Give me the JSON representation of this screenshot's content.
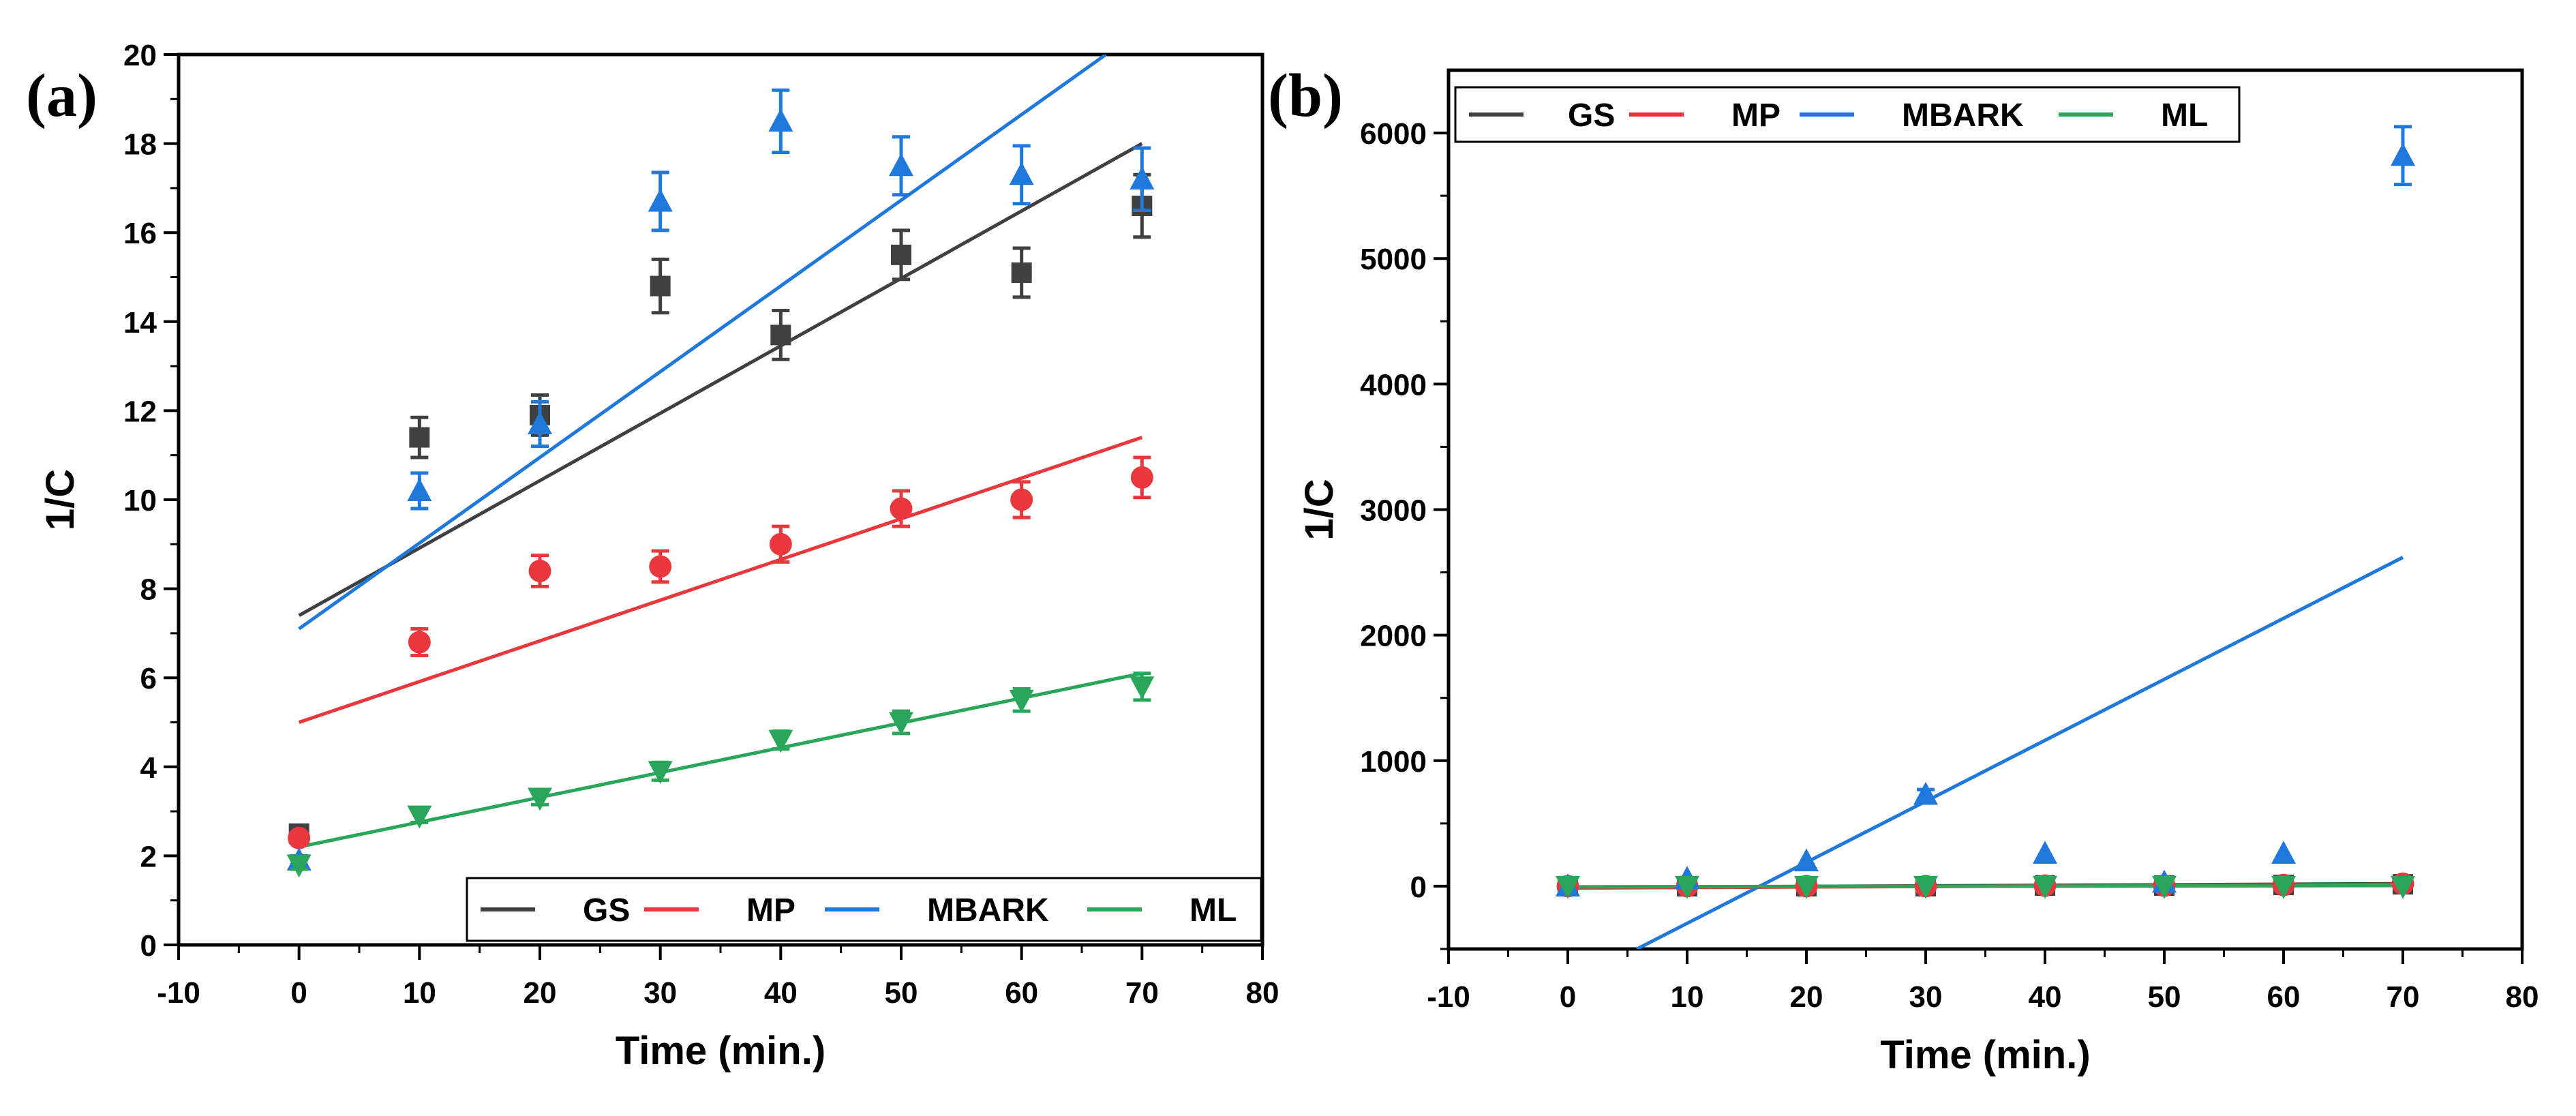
{
  "colors": {
    "GS": "#404040",
    "MP": "#e8383d",
    "MBARK": "#1f78dc",
    "ML": "#2aa65a",
    "axis": "#000000"
  },
  "chart_data": [
    {
      "type": "scatter",
      "panel_label": "(a)",
      "xlabel": "Time (min.)",
      "ylabel": "1/C",
      "xlim": [
        -10,
        80
      ],
      "ylim": [
        0,
        20
      ],
      "xticks": [
        "-10",
        "0",
        "10",
        "20",
        "30",
        "40",
        "50",
        "60",
        "70",
        "80"
      ],
      "yticks": [
        "0",
        "2",
        "4",
        "6",
        "8",
        "10",
        "12",
        "14",
        "16",
        "18",
        "20"
      ],
      "legend_position": "bottom-right",
      "legend": [
        "GS",
        "MP",
        "MBARK",
        "ML"
      ],
      "series": [
        {
          "name": "GS",
          "marker": "square",
          "x": [
            0,
            10,
            20,
            30,
            40,
            50,
            60,
            70
          ],
          "y": [
            2.5,
            11.4,
            11.9,
            14.8,
            13.7,
            15.5,
            15.1,
            16.6
          ],
          "err": [
            0.15,
            0.45,
            0.45,
            0.6,
            0.55,
            0.55,
            0.55,
            0.7
          ],
          "fit": {
            "x": [
              0,
              70
            ],
            "y": [
              7.4,
              18.0
            ]
          }
        },
        {
          "name": "MP",
          "marker": "circle",
          "x": [
            0,
            10,
            20,
            30,
            40,
            50,
            60,
            70
          ],
          "y": [
            2.4,
            6.8,
            8.4,
            8.5,
            9.0,
            9.8,
            10.0,
            10.5
          ],
          "err": [
            0.1,
            0.3,
            0.35,
            0.35,
            0.4,
            0.4,
            0.4,
            0.45
          ],
          "fit": {
            "x": [
              0,
              70
            ],
            "y": [
              5.0,
              11.4
            ]
          }
        },
        {
          "name": "MBARK",
          "marker": "triangle-up",
          "x": [
            0,
            10,
            20,
            30,
            40,
            50,
            60,
            70
          ],
          "y": [
            1.9,
            10.2,
            11.7,
            16.7,
            18.5,
            17.5,
            17.3,
            17.2
          ],
          "err": [
            0.1,
            0.4,
            0.5,
            0.65,
            0.7,
            0.65,
            0.65,
            0.7
          ],
          "fit": {
            "x": [
              0,
              67
            ],
            "y": [
              7.1,
              20.0
            ]
          }
        },
        {
          "name": "ML",
          "marker": "triangle-down",
          "x": [
            0,
            10,
            20,
            30,
            40,
            50,
            60,
            70
          ],
          "y": [
            1.8,
            2.9,
            3.3,
            3.9,
            4.6,
            5.0,
            5.5,
            5.8
          ],
          "err": [
            0.1,
            0.15,
            0.15,
            0.2,
            0.2,
            0.25,
            0.25,
            0.3
          ],
          "fit": {
            "x": [
              0,
              70
            ],
            "y": [
              2.2,
              6.1
            ]
          }
        }
      ]
    },
    {
      "type": "scatter",
      "panel_label": "(b)",
      "xlabel": "Time (min.)",
      "ylabel": "1/C",
      "xlim": [
        -10,
        80
      ],
      "ylim": [
        -500,
        6500
      ],
      "xticks": [
        "-10",
        "0",
        "10",
        "20",
        "30",
        "40",
        "50",
        "60",
        "70",
        "80"
      ],
      "yticks": [
        "0",
        "1000",
        "2000",
        "3000",
        "4000",
        "5000",
        "6000"
      ],
      "legend_position": "top-left",
      "legend": [
        "GS",
        "MP",
        "MBARK",
        "ML"
      ],
      "series": [
        {
          "name": "GS",
          "marker": "square",
          "x": [
            0,
            10,
            20,
            30,
            40,
            50,
            60,
            70
          ],
          "y": [
            0,
            0,
            0,
            0,
            5,
            5,
            10,
            15
          ],
          "err": [
            0,
            0,
            0,
            0,
            0,
            0,
            0,
            0
          ],
          "fit": {
            "x": [
              0,
              70
            ],
            "y": [
              -10,
              20
            ]
          }
        },
        {
          "name": "MP",
          "marker": "circle",
          "x": [
            0,
            10,
            20,
            30,
            40,
            50,
            60,
            70
          ],
          "y": [
            0,
            0,
            0,
            0,
            5,
            5,
            10,
            20
          ],
          "err": [
            0,
            0,
            0,
            0,
            0,
            0,
            0,
            0
          ],
          "fit": {
            "x": [
              0,
              70
            ],
            "y": [
              -15,
              15
            ]
          }
        },
        {
          "name": "MBARK",
          "marker": "triangle-up",
          "x": [
            0,
            10,
            20,
            30,
            40,
            50,
            60,
            70
          ],
          "y": [
            0,
            60,
            200,
            730,
            260,
            30,
            260,
            5820
          ],
          "err": [
            0,
            0,
            0,
            40,
            0,
            0,
            0,
            230
          ],
          "fit": {
            "x": [
              5.8,
              70
            ],
            "y": [
              -500,
              2620
            ]
          }
        },
        {
          "name": "ML",
          "marker": "triangle-down",
          "x": [
            0,
            10,
            20,
            30,
            40,
            50,
            60,
            70
          ],
          "y": [
            0,
            0,
            0,
            0,
            0,
            0,
            0,
            0
          ],
          "err": [
            0,
            0,
            0,
            0,
            0,
            0,
            0,
            0
          ],
          "fit": {
            "x": [
              0,
              70
            ],
            "y": [
              -5,
              5
            ]
          }
        }
      ]
    }
  ]
}
